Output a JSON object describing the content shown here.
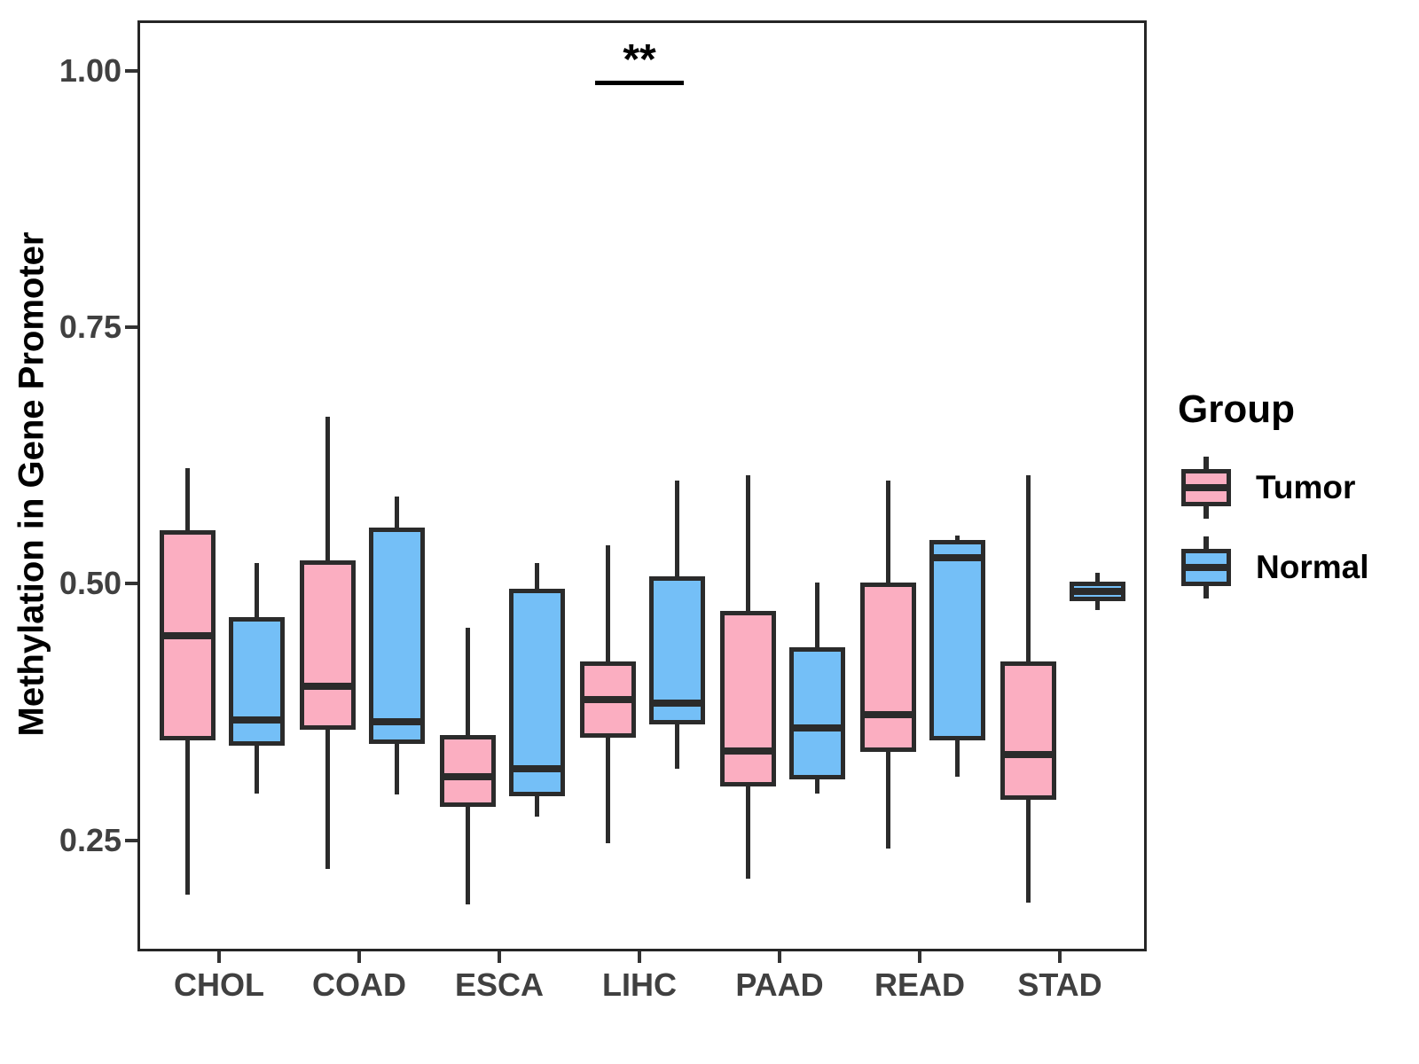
{
  "figure": {
    "ylabel": "Methylation in Gene Promoter"
  },
  "legend": {
    "title": "Group",
    "entries": [
      {
        "label": "Tumor",
        "color": "#FBAEC1"
      },
      {
        "label": "Normal",
        "color": "#74BFF7"
      }
    ]
  },
  "colors": {
    "tumor_fill": "#FBAEC1",
    "normal_fill": "#74BFF7",
    "stroke": "#2b2b2b",
    "axis_text": "#404040",
    "panel_border": "#262626"
  },
  "chart_data": {
    "type": "boxplot",
    "title": "",
    "xlabel": "",
    "ylabel": "Methylation in Gene Promoter",
    "categories": [
      "CHOL",
      "COAD",
      "ESCA",
      "LIHC",
      "PAAD",
      "READ",
      "STAD"
    ],
    "ylim": [
      0.147,
      1.049
    ],
    "y_ticks": [
      {
        "value": 1.0,
        "label": "1.00"
      },
      {
        "value": 0.75,
        "label": "0.75"
      },
      {
        "value": 0.5,
        "label": "0.50"
      },
      {
        "value": 0.25,
        "label": "0.25"
      }
    ],
    "grid": false,
    "legend_position": "right",
    "series": [
      {
        "name": "Tumor",
        "color": "#FBAEC1",
        "boxes": [
          {
            "category": "CHOL",
            "low": 0.2,
            "q1": 0.35,
            "median": 0.452,
            "q3": 0.555,
            "high": 0.615
          },
          {
            "category": "COAD",
            "low": 0.225,
            "q1": 0.36,
            "median": 0.403,
            "q3": 0.525,
            "high": 0.665
          },
          {
            "category": "ESCA",
            "low": 0.19,
            "q1": 0.285,
            "median": 0.315,
            "q3": 0.355,
            "high": 0.46
          },
          {
            "category": "LIHC",
            "low": 0.25,
            "q1": 0.353,
            "median": 0.39,
            "q3": 0.427,
            "high": 0.54
          },
          {
            "category": "PAAD",
            "low": 0.215,
            "q1": 0.305,
            "median": 0.34,
            "q3": 0.476,
            "high": 0.608
          },
          {
            "category": "READ",
            "low": 0.245,
            "q1": 0.339,
            "median": 0.375,
            "q3": 0.504,
            "high": 0.603
          },
          {
            "category": "STAD",
            "low": 0.192,
            "q1": 0.292,
            "median": 0.336,
            "q3": 0.427,
            "high": 0.608
          }
        ]
      },
      {
        "name": "Normal",
        "color": "#74BFF7",
        "boxes": [
          {
            "category": "CHOL",
            "low": 0.298,
            "q1": 0.345,
            "median": 0.37,
            "q3": 0.47,
            "high": 0.523
          },
          {
            "category": "COAD",
            "low": 0.297,
            "q1": 0.347,
            "median": 0.368,
            "q3": 0.557,
            "high": 0.588
          },
          {
            "category": "ESCA",
            "low": 0.276,
            "q1": 0.296,
            "median": 0.322,
            "q3": 0.498,
            "high": 0.523
          },
          {
            "category": "LIHC",
            "low": 0.322,
            "q1": 0.366,
            "median": 0.386,
            "q3": 0.51,
            "high": 0.603
          },
          {
            "category": "PAAD",
            "low": 0.298,
            "q1": 0.312,
            "median": 0.362,
            "q3": 0.441,
            "high": 0.504
          },
          {
            "category": "READ",
            "low": 0.315,
            "q1": 0.35,
            "median": 0.528,
            "q3": 0.545,
            "high": 0.55
          },
          {
            "category": "STAD",
            "low": 0.477,
            "q1": 0.486,
            "median": 0.495,
            "q3": 0.505,
            "high": 0.513
          }
        ]
      }
    ],
    "significance": {
      "label": "**",
      "category": "LIHC",
      "y": 0.99
    }
  }
}
